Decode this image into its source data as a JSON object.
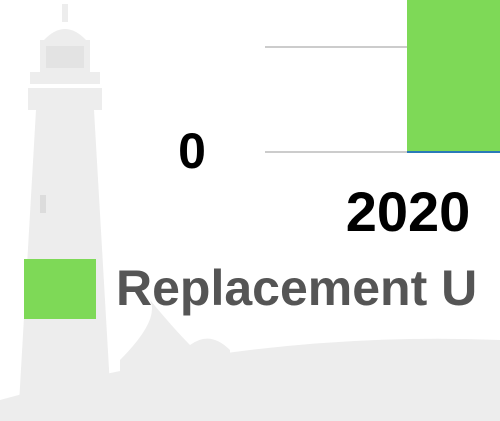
{
  "chart_data": {
    "type": "bar",
    "categories": [
      "2020"
    ],
    "values": [
      2
    ],
    "color": "#7ed957",
    "ylim": [
      0,
      2
    ],
    "yticks": [
      0
    ],
    "grid": true,
    "legend": "bottom-left",
    "legend_label": "Replacement U"
  }
}
